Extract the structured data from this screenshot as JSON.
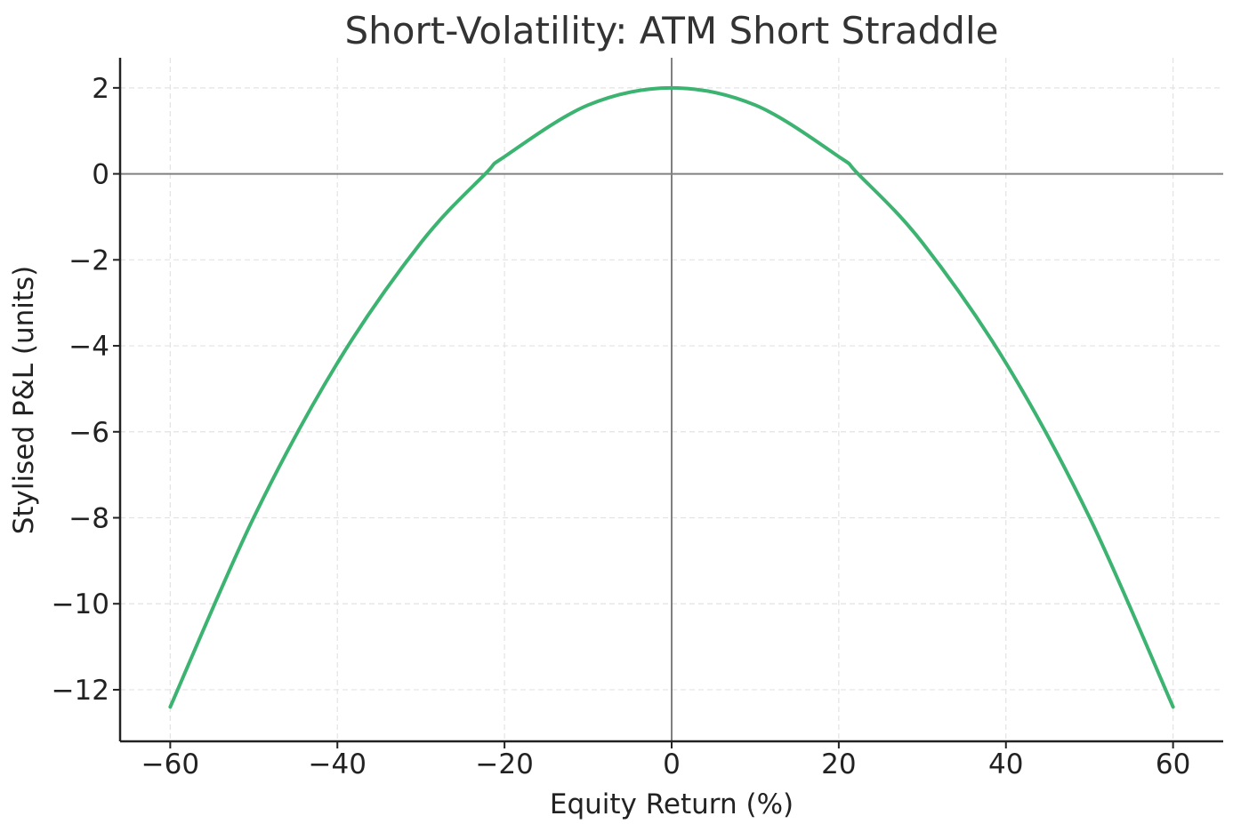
{
  "chart_data": {
    "type": "line",
    "title": "Short-Volatility: ATM Short Straddle",
    "xlabel": "Equity Return (%)",
    "ylabel": "Stylised P&L (units)",
    "xlim": [
      -66,
      66
    ],
    "ylim": [
      -13.2,
      2.7
    ],
    "x_ticks": [
      -60,
      -40,
      -20,
      0,
      20,
      40,
      60
    ],
    "x_tick_labels": [
      "−60",
      "−40",
      "−20",
      "0",
      "20",
      "40",
      "60"
    ],
    "y_ticks": [
      2,
      0,
      -2,
      -4,
      -6,
      -8,
      -10,
      -12
    ],
    "y_tick_labels": [
      "2",
      "0",
      "−2",
      "−4",
      "−6",
      "−8",
      "−10",
      "−12"
    ],
    "grid": true,
    "reference_lines": {
      "horizontal_at_y": 0,
      "vertical_at_x": 0
    },
    "series": [
      {
        "x": [
          -60,
          -50,
          -40,
          -30,
          -22.3,
          -20,
          -10,
          0,
          10,
          20,
          22.3,
          30,
          40,
          50,
          60
        ],
        "y": [
          -12.4,
          -7.99,
          -4.4,
          -1.6,
          0,
          0.4,
          1.6,
          2.0,
          1.6,
          0.4,
          0,
          -1.6,
          -4.4,
          -7.99,
          -12.4
        ]
      }
    ]
  },
  "colors": {
    "line": "#3cb371",
    "reference": "#808080",
    "grid": "#e3e3e3",
    "axis": "#222222"
  }
}
